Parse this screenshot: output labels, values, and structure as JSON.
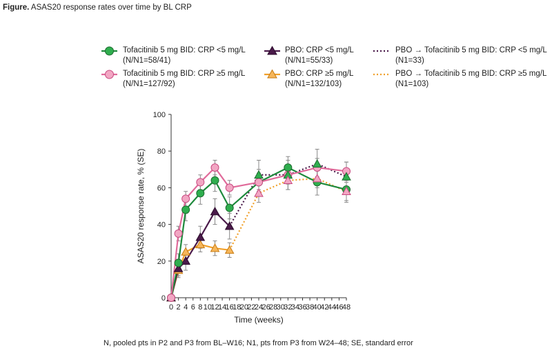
{
  "figure": {
    "title_bold": "Figure.",
    "title_rest": "ASAS20 response rates over time by BL CRP",
    "footnote": "N, pooled pts in P2 and P3 from BL–W16; N1, pts from P3 from W24–48; SE, standard error"
  },
  "legend": [
    {
      "line1": "Tofacitinib 5 mg BID: CRP <5 mg/L",
      "line2": "(N/N1=58/41)"
    },
    {
      "line1": "Tofacitinib 5 mg BID: CRP ≥5 mg/L",
      "line2": "(N/N1=127/92)"
    },
    {
      "line1": "PBO: CRP <5 mg/L",
      "line2": "(N/N1=55/33)"
    },
    {
      "line1": "PBO: CRP ≥5 mg/L",
      "line2": "(N/N1=132/103)"
    },
    {
      "line1": "PBO → Tofacitinib 5 mg BID: CRP <5 mg/L",
      "line2": "(N1=33)"
    },
    {
      "line1": "PBO → Tofacitinib 5 mg BID: CRP ≥5 mg/L",
      "line2": "(N1=103)"
    }
  ],
  "chart_data": {
    "type": "line",
    "title": "ASAS20 response rates over time by BL CRP",
    "xlabel": "Time (weeks)",
    "ylabel": "ASAS20 response rate, % (SE)",
    "xlim": [
      0,
      48
    ],
    "ylim": [
      0,
      100
    ],
    "xticks": [
      0,
      2,
      4,
      6,
      8,
      10,
      12,
      14,
      16,
      18,
      20,
      22,
      24,
      26,
      28,
      30,
      32,
      34,
      36,
      38,
      40,
      42,
      44,
      46,
      48
    ],
    "yticks": [
      0,
      20,
      40,
      60,
      80,
      100
    ],
    "series": [
      {
        "name": "Tofacitinib 5 mg BID: CRP <5 mg/L",
        "color": "#1e8a3c",
        "marker": "circle",
        "dash": "solid",
        "x": [
          0,
          2,
          4,
          8,
          12,
          16,
          24,
          32,
          40,
          48
        ],
        "y": [
          0,
          19,
          48,
          57,
          64,
          49,
          63,
          71,
          63,
          59
        ],
        "se": [
          0,
          5,
          6,
          6,
          6,
          6,
          7,
          6,
          7,
          7
        ]
      },
      {
        "name": "Tofacitinib 5 mg BID: CRP ≥5 mg/L",
        "color": "#e06a9a",
        "marker": "circle",
        "dash": "solid",
        "x": [
          0,
          2,
          4,
          8,
          12,
          16,
          24,
          32,
          40,
          48
        ],
        "y": [
          0,
          35,
          54,
          63,
          71,
          60,
          63,
          67,
          71,
          69
        ],
        "se": [
          0,
          4,
          4,
          4,
          4,
          4,
          5,
          5,
          5,
          5
        ]
      },
      {
        "name": "PBO: CRP <5 mg/L",
        "color": "#4a1a4a",
        "marker": "triangle",
        "dash": "solid",
        "x": [
          0,
          2,
          4,
          8,
          12,
          16
        ],
        "y": [
          0,
          16,
          20,
          33,
          47,
          39
        ],
        "se": [
          0,
          5,
          5,
          6,
          7,
          7
        ]
      },
      {
        "name": "PBO: CRP ≥5 mg/L",
        "color": "#f0a02a",
        "marker": "triangle",
        "dash": "solid",
        "x": [
          0,
          2,
          4,
          8,
          12,
          16
        ],
        "y": [
          0,
          15,
          25,
          29,
          27,
          26
        ],
        "se": [
          0,
          3,
          4,
          4,
          4,
          4
        ]
      },
      {
        "name": "PBO → Tofacitinib 5 mg BID: CRP <5 mg/L",
        "color": "#4a1a4a",
        "marker": "triangle-green",
        "dash": "dotted",
        "x": [
          16,
          24,
          32,
          40,
          48
        ],
        "y": [
          39,
          67,
          67,
          73,
          66
        ],
        "se": [
          0,
          8,
          8,
          8,
          8
        ]
      },
      {
        "name": "PBO → Tofacitinib 5 mg BID: CRP ≥5 mg/L",
        "color": "#f0a02a",
        "marker": "triangle-pink",
        "dash": "dotted",
        "x": [
          16,
          24,
          32,
          40,
          48
        ],
        "y": [
          26,
          57,
          64,
          65,
          58
        ],
        "se": [
          0,
          5,
          5,
          5,
          5
        ]
      }
    ]
  },
  "colors": {
    "green": "#1e8a3c",
    "pink": "#e06a9a",
    "purple": "#4a1a4a",
    "orange": "#f0a02a",
    "marker_green_fill": "#2fae4e",
    "marker_pink_fill": "#f2a6c3",
    "marker_purple_fill": "#4a1a4a",
    "marker_orange_fill": "#f6b65a",
    "errorbar": "#888888"
  }
}
